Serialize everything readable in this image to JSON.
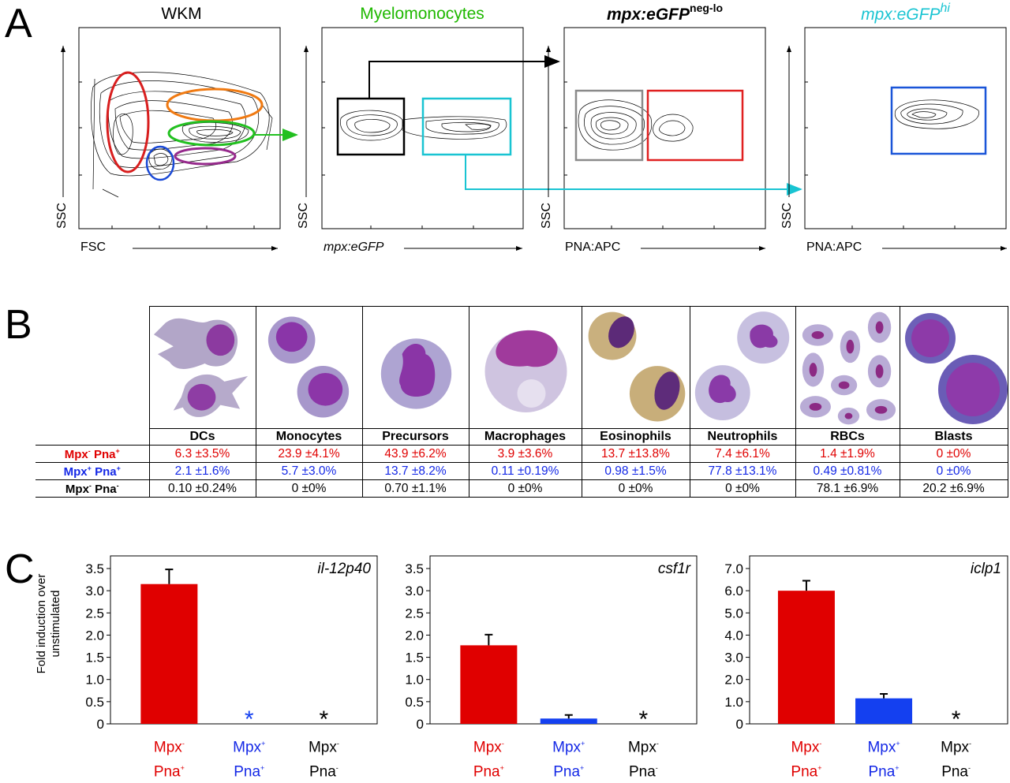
{
  "panels": {
    "a": "A",
    "b": "B",
    "c": "C"
  },
  "flow": [
    {
      "title": "WKM",
      "title_color": "#000000",
      "xlabel": "FSC",
      "ylabel": "SSC"
    },
    {
      "title": "Myelomonocytes",
      "title_color": "#1fb800",
      "xlabel": "mpx:eGFP",
      "ylabel": "SSC"
    },
    {
      "title": "mpx:eGFP",
      "title_sup": "neg-lo",
      "title_color": "#000000",
      "xlabel": "PNA:APC",
      "ylabel": "SSC"
    },
    {
      "title": "mpx:eGFP",
      "title_sup": "hi",
      "title_color": "#19c4d2",
      "xlabel": "PNA:APC",
      "ylabel": "SSC"
    }
  ],
  "colors": {
    "red": "#e00000",
    "blue": "#1428e6",
    "green": "#22c020",
    "cyan": "#19c4d2",
    "orange": "#f07a12",
    "purple": "#962a8c",
    "gray": "#8a8a8a"
  },
  "table": {
    "columns": [
      "DCs",
      "Monocytes",
      "Precursors",
      "Macrophages",
      "Eosinophils",
      "Neutrophils",
      "RBCs",
      "Blasts"
    ],
    "rows": [
      {
        "label_a": "Mpx",
        "sup_a": "-",
        "label_b": "Pna",
        "sup_b": "+",
        "color": "red",
        "values": [
          "6.3 ±3.5%",
          "23.9 ±4.1%",
          "43.9 ±6.2%",
          "3.9 ±3.6%",
          "13.7 ±13.8%",
          "7.4 ±6.1%",
          "1.4 ±1.9%",
          "0 ±0%"
        ]
      },
      {
        "label_a": "Mpx",
        "sup_a": "+",
        "label_b": "Pna",
        "sup_b": "+",
        "color": "blue",
        "values": [
          "2.1 ±1.6%",
          "5.7 ±3.0%",
          "13.7 ±8.2%",
          "0.11 ±0.19%",
          "0.98 ±1.5%",
          "77.8 ±13.1%",
          "0.49 ±0.81%",
          "0 ±0%"
        ]
      },
      {
        "label_a": "Mpx",
        "sup_a": "-",
        "label_b": "Pna",
        "sup_b": "-",
        "color": "blk",
        "values": [
          "0.10 ±0.24%",
          "0 ±0%",
          "0.70 ±1.1%",
          "0 ±0%",
          "0 ±0%",
          "0 ±0%",
          "78.1 ±6.9%",
          "20.2 ±6.9%"
        ]
      }
    ]
  },
  "chart_ylabel_line1": "Fold induction over",
  "chart_ylabel_line2": "unstimulated",
  "chart_data": [
    {
      "type": "bar",
      "title": "il-12p40",
      "categories": [
        "Mpx- Pna+",
        "Mpx+ Pna+",
        "Mpx- Pna-"
      ],
      "values": [
        3.15,
        0,
        0
      ],
      "errors": [
        0.33,
        0,
        0
      ],
      "asterisk": [
        false,
        true,
        true
      ],
      "ylim": [
        0,
        3.5
      ],
      "yticks": [
        "0",
        "0.5",
        "1.0",
        "1.5",
        "2.0",
        "2.5",
        "3.0",
        "3.5"
      ]
    },
    {
      "type": "bar",
      "title": "csf1r",
      "categories": [
        "Mpx- Pna+",
        "Mpx+ Pna+",
        "Mpx- Pna-"
      ],
      "values": [
        1.77,
        0.12,
        0
      ],
      "errors": [
        0.24,
        0.08,
        0
      ],
      "asterisk": [
        false,
        false,
        true
      ],
      "ylim": [
        0,
        3.5
      ],
      "yticks": [
        "0",
        "0.5",
        "1.0",
        "1.5",
        "2.0",
        "2.5",
        "3.0",
        "3.5"
      ]
    },
    {
      "type": "bar",
      "title": "iclp1",
      "categories": [
        "Mpx- Pna+",
        "Mpx+ Pna+",
        "Mpx- Pna-"
      ],
      "values": [
        6.0,
        1.15,
        0
      ],
      "errors": [
        0.45,
        0.2,
        0
      ],
      "asterisk": [
        false,
        false,
        true
      ],
      "ylim": [
        0,
        7.0
      ],
      "yticks": [
        "0",
        "1.0",
        "2.0",
        "3.0",
        "4.0",
        "5.0",
        "6.0",
        "7.0"
      ]
    }
  ],
  "bar_xlabels": [
    {
      "top": "Mpx",
      "top_sup": "-",
      "bottom": "Pna",
      "bottom_sup": "+",
      "color": "red"
    },
    {
      "top": "Mpx",
      "top_sup": "+",
      "bottom": "Pna",
      "bottom_sup": "+",
      "color": "blue"
    },
    {
      "top": "Mpx",
      "top_sup": "-",
      "bottom": "Pna",
      "bottom_sup": "-",
      "color": "blk"
    }
  ],
  "bar_colors": [
    "#e00000",
    "#1440f0",
    "#000000"
  ],
  "asterisk_char": "*"
}
